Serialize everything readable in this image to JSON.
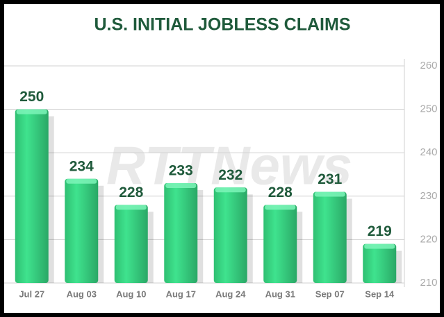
{
  "chart_data": {
    "type": "bar",
    "title": "U.S. INITIAL JOBLESS CLAIMS",
    "watermark": "RTTNews",
    "categories": [
      "Jul 27",
      "Aug 03",
      "Aug 10",
      "Aug 17",
      "Aug 24",
      "Aug 31",
      "Sep 07",
      "Sep 14"
    ],
    "values": [
      250,
      234,
      228,
      233,
      232,
      228,
      231,
      219
    ],
    "color": "#35d982",
    "ylim": [
      210,
      260
    ],
    "yticks": [
      210,
      220,
      230,
      240,
      250,
      260
    ],
    "grid": true,
    "y_axis_side": "right"
  }
}
